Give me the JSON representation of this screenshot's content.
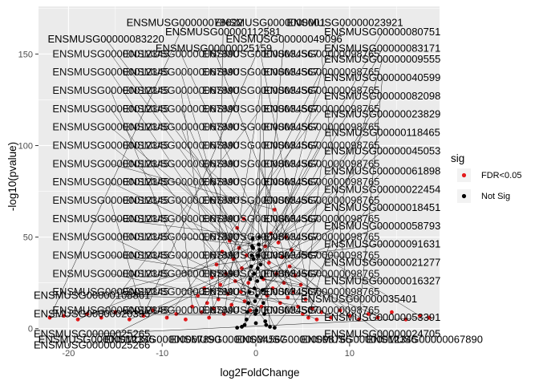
{
  "chart_data": {
    "type": "scatter",
    "title": "",
    "xlabel": "log2FoldChange",
    "ylabel": "-log10(pvalue)",
    "xlim": [
      -23.2,
      19.6
    ],
    "ylim": [
      -8,
      176
    ],
    "xticks": [
      -20,
      -10,
      0,
      10
    ],
    "yticks": [
      0,
      50,
      100,
      150
    ],
    "tick_labels": {
      "x": [
        "-20",
        "-10",
        "0",
        "10"
      ],
      "y": [
        "0",
        "50",
        "100",
        "150"
      ]
    },
    "grid": true,
    "legend": {
      "title": "sig",
      "position": "right",
      "entries": [
        {
          "name": "FDR<0.05",
          "color": "#e41a1c"
        },
        {
          "name": "Not Sig",
          "color": "#000000"
        }
      ]
    },
    "series": [
      {
        "name": "FDR<0.05",
        "color": "#e41a1c",
        "points": [
          [
            -22,
            6
          ],
          [
            -20.5,
            7
          ],
          [
            -19,
            5
          ],
          [
            -18,
            8
          ],
          [
            -16.5,
            6
          ],
          [
            -15,
            9
          ],
          [
            -13.5,
            5
          ],
          [
            -12,
            7
          ],
          [
            -11,
            10
          ],
          [
            -9.5,
            6
          ],
          [
            -8.5,
            8
          ],
          [
            -7.5,
            5
          ],
          [
            -6.8,
            12
          ],
          [
            -6.2,
            18
          ],
          [
            -5.8,
            9
          ],
          [
            -5.5,
            22
          ],
          [
            -5.2,
            14
          ],
          [
            -5,
            6
          ],
          [
            -4.7,
            28
          ],
          [
            -4.5,
            11
          ],
          [
            -4.2,
            35
          ],
          [
            -4,
            16
          ],
          [
            -3.8,
            24
          ],
          [
            -3.6,
            42
          ],
          [
            -3.4,
            8
          ],
          [
            -3.2,
            30
          ],
          [
            -3,
            19
          ],
          [
            -2.8,
            48
          ],
          [
            -2.6,
            13
          ],
          [
            -2.4,
            38
          ],
          [
            -2.2,
            26
          ],
          [
            -2,
            55
          ],
          [
            -1.8,
            44
          ],
          [
            -1.6,
            20
          ],
          [
            -1.5,
            33
          ],
          [
            -1.3,
            60
          ],
          [
            -1.2,
            15
          ],
          [
            -1,
            40
          ],
          [
            -0.8,
            25
          ],
          [
            -0.6,
            10
          ],
          [
            0.6,
            12
          ],
          [
            0.8,
            27
          ],
          [
            1,
            45
          ],
          [
            1.2,
            18
          ],
          [
            1.4,
            36
          ],
          [
            1.6,
            52
          ],
          [
            1.8,
            22
          ],
          [
            2,
            65
          ],
          [
            2.2,
            30
          ],
          [
            2.4,
            47
          ],
          [
            2.6,
            14
          ],
          [
            2.8,
            39
          ],
          [
            3,
            25
          ],
          [
            3.2,
            50
          ],
          [
            3.4,
            17
          ],
          [
            3.6,
            34
          ],
          [
            3.8,
            43
          ],
          [
            4,
            20
          ],
          [
            4.2,
            29
          ],
          [
            4.5,
            12
          ],
          [
            4.8,
            24
          ],
          [
            5,
            8
          ],
          [
            5.3,
            16
          ],
          [
            5.6,
            6
          ],
          [
            6,
            11
          ],
          [
            6.5,
            5
          ],
          [
            7,
            9
          ],
          [
            8,
            6
          ],
          [
            9,
            10
          ],
          [
            10,
            7
          ],
          [
            11,
            5
          ],
          [
            12,
            8
          ],
          [
            13,
            6
          ],
          [
            14.5,
            9
          ],
          [
            16,
            5
          ],
          [
            17.5,
            7
          ],
          [
            18.5,
            6
          ]
        ]
      },
      {
        "name": "Not Sig",
        "color": "#000000",
        "points": [
          [
            -1.2,
            2
          ],
          [
            -1,
            5
          ],
          [
            -0.9,
            9
          ],
          [
            -0.8,
            14
          ],
          [
            -0.7,
            20
          ],
          [
            -0.6,
            27
          ],
          [
            -0.5,
            34
          ],
          [
            -0.45,
            40
          ],
          [
            -0.4,
            45
          ],
          [
            -0.35,
            49
          ],
          [
            -0.3,
            44
          ],
          [
            -0.25,
            38
          ],
          [
            -0.2,
            30
          ],
          [
            -0.15,
            22
          ],
          [
            -0.1,
            15
          ],
          [
            -0.05,
            8
          ],
          [
            0,
            3
          ],
          [
            0.05,
            10
          ],
          [
            0.1,
            18
          ],
          [
            0.15,
            26
          ],
          [
            0.2,
            33
          ],
          [
            0.25,
            40
          ],
          [
            0.3,
            46
          ],
          [
            0.35,
            50
          ],
          [
            0.4,
            43
          ],
          [
            0.5,
            35
          ],
          [
            0.6,
            28
          ],
          [
            0.7,
            21
          ],
          [
            0.8,
            14
          ],
          [
            0.9,
            8
          ],
          [
            1,
            4
          ],
          [
            1.1,
            2
          ],
          [
            -1.5,
            1
          ],
          [
            1.5,
            1
          ],
          [
            -2,
            0.5
          ],
          [
            2,
            0.5
          ]
        ]
      }
    ],
    "gene_labels": [
      {
        "text": "ENSMUSG00000078622",
        "x": -7.6,
        "y": 167
      },
      {
        "text": "ENSMUSG0000000001",
        "x": 1.5,
        "y": 167
      },
      {
        "text": "ENSMUSG00000023921",
        "x": 9.5,
        "y": 167
      },
      {
        "text": "ENSMUSG00000112581",
        "x": -3.5,
        "y": 162
      },
      {
        "text": "ENSMUSG00000080751",
        "x": 13.5,
        "y": 162
      },
      {
        "text": "ENSMUSG00000083220",
        "x": -16.0,
        "y": 158
      },
      {
        "text": "ENSMUSG00000049096",
        "x": 3.0,
        "y": 158
      },
      {
        "text": "ENSMUSG00000083171",
        "x": 13.5,
        "y": 153
      },
      {
        "text": "ENSMUSG00000025159",
        "x": -4.5,
        "y": 153
      },
      {
        "text": "ENSMUSG00000009555",
        "x": 13.5,
        "y": 147
      },
      {
        "text": "ENSMUSG00000040599",
        "x": 13.5,
        "y": 137
      },
      {
        "text": "ENSMUSG00000082098",
        "x": 13.5,
        "y": 127
      },
      {
        "text": "ENSMUSG00000023829",
        "x": 13.5,
        "y": 117
      },
      {
        "text": "ENSMUSG00000118465",
        "x": 13.5,
        "y": 107
      },
      {
        "text": "ENSMUSG00000045053",
        "x": 13.5,
        "y": 97
      },
      {
        "text": "ENSMUSG00000061898",
        "x": 13.5,
        "y": 86
      },
      {
        "text": "ENSMUSG00000022454",
        "x": 13.5,
        "y": 76
      },
      {
        "text": "ENSMUSG00000018451",
        "x": 13.5,
        "y": 66
      },
      {
        "text": "ENSMUSG00000058793",
        "x": 13.5,
        "y": 56
      },
      {
        "text": "ENSMUSG00000091631",
        "x": 13.5,
        "y": 46
      },
      {
        "text": "ENSMUSG00000021277",
        "x": 13.5,
        "y": 36
      },
      {
        "text": "ENSMUSG00000016327",
        "x": 13.5,
        "y": 26
      },
      {
        "text": "ENSMUSG00000035401",
        "x": 11.0,
        "y": 16
      },
      {
        "text": "ENSMUSG00000053391",
        "x": 13.5,
        "y": 6
      },
      {
        "text": "ENSMUSG00000024705",
        "x": 13.5,
        "y": -3
      },
      {
        "text": "ENSMUSG00000108861",
        "x": -17.5,
        "y": 18
      },
      {
        "text": "ENSMUSG00000020395",
        "x": -17.5,
        "y": 8
      },
      {
        "text": "ENSMUSG00000025265",
        "x": -17.5,
        "y": -3
      },
      {
        "text": "ENSMUSG00000025266",
        "x": -17.5,
        "y": -9
      }
    ],
    "filler_labels": [
      "ENSMUSG00000012345",
      "ENSMUSG00000067890",
      "ENSMUSG00000034567",
      "ENSMUSG00000098765"
    ]
  }
}
